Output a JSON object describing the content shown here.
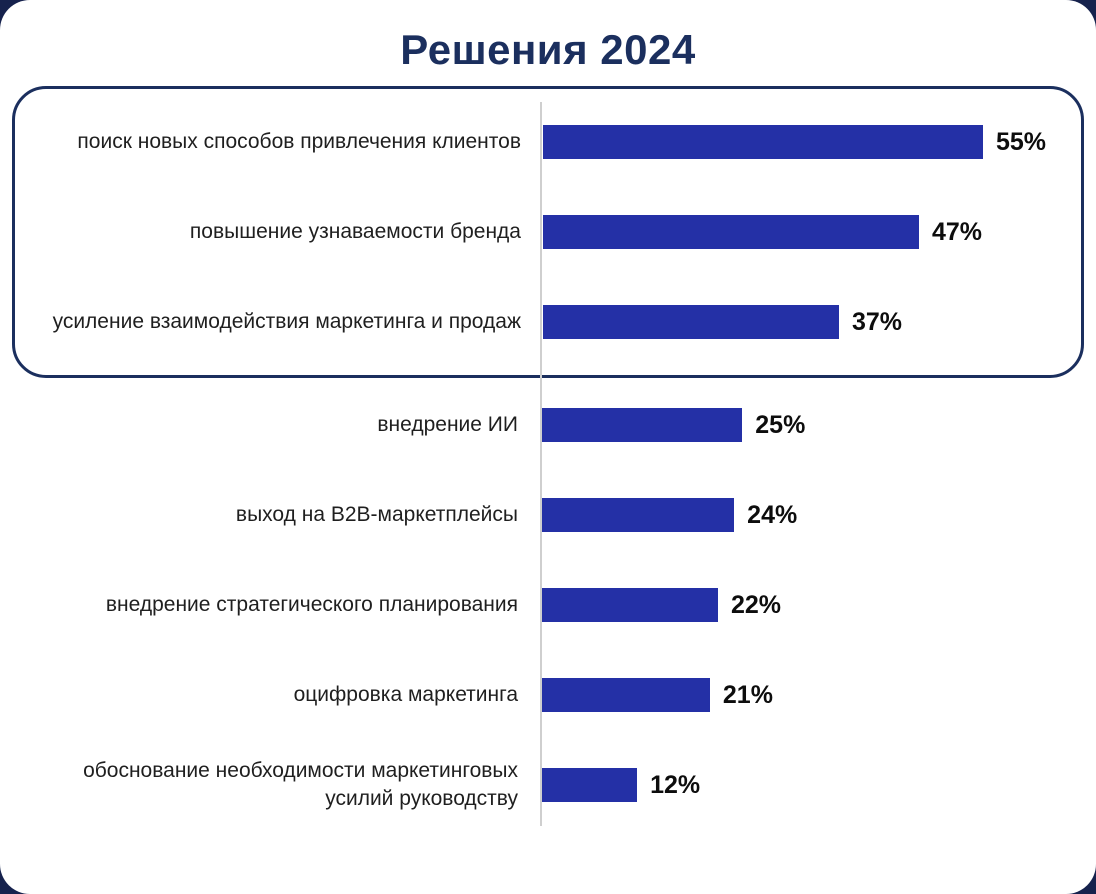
{
  "page": {
    "background_color": "#16224d",
    "card_background_color": "#ffffff"
  },
  "chart_data": {
    "type": "bar",
    "orientation": "horizontal",
    "title": "Решения 2024",
    "title_color": "#1b2f5e",
    "bar_color": "#2430a6",
    "highlight_border_color": "#1b2f5e",
    "grid": false,
    "legend": "none",
    "xlim": [
      0,
      66
    ],
    "categories": [
      "поиск новых способов привлечения клиентов",
      "повышение узнаваемости бренда",
      "усиление взаимодействия маркетинга и продаж",
      "внедрение ИИ",
      "выход на B2B-маркетплейсы",
      "внедрение стратегического планирования",
      "оцифровка маркетинга",
      "обоснование необходимости маркетинговых усилий руководству"
    ],
    "values": [
      55,
      47,
      37,
      25,
      24,
      22,
      21,
      12
    ],
    "value_labels": [
      "55%",
      "47%",
      "37%",
      "25%",
      "24%",
      "22%",
      "21%",
      "12%"
    ],
    "highlighted_categories_count": 3
  }
}
